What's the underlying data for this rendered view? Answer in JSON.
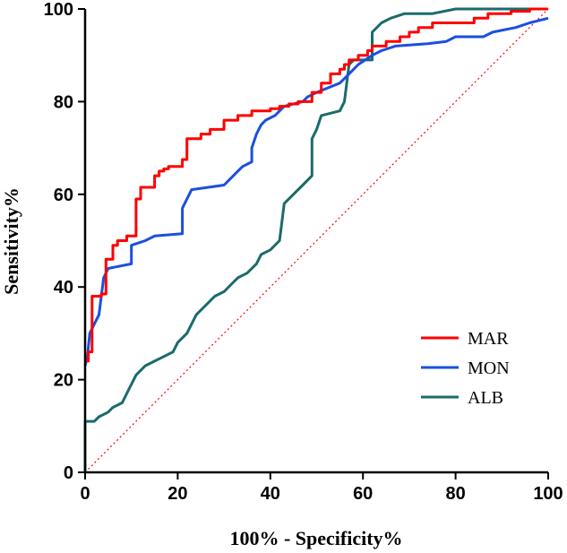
{
  "chart_data": {
    "type": "line",
    "title": "",
    "xlabel": "100% - Specificity%",
    "ylabel": "Sensitivity%",
    "xlim": [
      0,
      100
    ],
    "ylim": [
      0,
      100
    ],
    "xticks": [
      0,
      20,
      40,
      60,
      80,
      100
    ],
    "yticks": [
      0,
      20,
      40,
      60,
      80,
      100
    ],
    "tick_labels_x": [
      "0",
      "20",
      "40",
      "60",
      "80",
      "100"
    ],
    "tick_labels_y": [
      "0",
      "20",
      "40",
      "60",
      "80",
      "100"
    ],
    "grid": false,
    "legend_position": "bottom-right",
    "reference_line": {
      "from": [
        0,
        0
      ],
      "to": [
        100,
        100
      ],
      "color": "#ff0000",
      "style": "dotted"
    },
    "series": [
      {
        "name": "MAR",
        "color": "#ff0000",
        "points": [
          [
            0,
            24
          ],
          [
            0.7,
            24
          ],
          [
            0.7,
            26
          ],
          [
            1.5,
            26
          ],
          [
            1.5,
            38
          ],
          [
            3.5,
            38
          ],
          [
            3.5,
            38.5
          ],
          [
            4.5,
            38.5
          ],
          [
            4.5,
            46
          ],
          [
            6,
            46
          ],
          [
            6,
            49
          ],
          [
            7,
            49
          ],
          [
            7,
            50
          ],
          [
            9,
            50
          ],
          [
            9,
            51
          ],
          [
            11,
            51
          ],
          [
            11,
            59
          ],
          [
            12,
            59
          ],
          [
            12,
            61.5
          ],
          [
            15,
            61.5
          ],
          [
            15,
            64
          ],
          [
            16,
            64
          ],
          [
            16,
            65
          ],
          [
            17,
            65
          ],
          [
            17,
            65.5
          ],
          [
            18,
            65.5
          ],
          [
            18,
            66
          ],
          [
            21,
            66
          ],
          [
            21,
            67.5
          ],
          [
            22,
            67.5
          ],
          [
            22,
            72
          ],
          [
            25,
            72
          ],
          [
            25,
            73
          ],
          [
            27,
            73
          ],
          [
            27,
            74
          ],
          [
            30,
            74
          ],
          [
            30,
            76
          ],
          [
            33,
            76
          ],
          [
            33,
            77
          ],
          [
            36,
            77
          ],
          [
            36,
            78
          ],
          [
            40,
            78
          ],
          [
            40,
            78.5
          ],
          [
            42,
            78.5
          ],
          [
            42,
            79
          ],
          [
            44,
            79
          ],
          [
            44,
            79.5
          ],
          [
            46,
            79.5
          ],
          [
            46,
            80
          ],
          [
            49,
            80
          ],
          [
            49,
            82
          ],
          [
            51,
            82
          ],
          [
            51,
            84
          ],
          [
            53,
            84
          ],
          [
            53,
            86
          ],
          [
            55,
            86
          ],
          [
            55,
            87
          ],
          [
            56,
            87
          ],
          [
            56,
            88
          ],
          [
            57,
            88
          ],
          [
            57,
            89
          ],
          [
            59,
            89
          ],
          [
            59,
            90
          ],
          [
            61,
            90
          ],
          [
            61,
            91
          ],
          [
            62,
            91
          ],
          [
            62,
            92
          ],
          [
            65,
            92
          ],
          [
            65,
            93
          ],
          [
            68,
            93
          ],
          [
            68,
            94
          ],
          [
            70,
            94
          ],
          [
            70,
            95
          ],
          [
            72,
            95
          ],
          [
            72,
            96
          ],
          [
            75,
            96
          ],
          [
            75,
            97
          ],
          [
            84,
            97
          ],
          [
            84,
            98
          ],
          [
            87,
            98
          ],
          [
            87,
            99
          ],
          [
            92,
            99
          ],
          [
            92,
            99.5
          ],
          [
            96,
            99.5
          ],
          [
            96,
            100
          ],
          [
            100,
            100
          ]
        ]
      },
      {
        "name": "MON",
        "color": "#1a4fe0",
        "points": [
          [
            0,
            23
          ],
          [
            0.5,
            25
          ],
          [
            1,
            30
          ],
          [
            2,
            32
          ],
          [
            3,
            34
          ],
          [
            4,
            42
          ],
          [
            5,
            44
          ],
          [
            10,
            45
          ],
          [
            10,
            49
          ],
          [
            13,
            50
          ],
          [
            15,
            51
          ],
          [
            21,
            51.5
          ],
          [
            21,
            57
          ],
          [
            23,
            61
          ],
          [
            30,
            62
          ],
          [
            33,
            65
          ],
          [
            34,
            66
          ],
          [
            36,
            67
          ],
          [
            36,
            70
          ],
          [
            37,
            73
          ],
          [
            38,
            75
          ],
          [
            39,
            76
          ],
          [
            41,
            77
          ],
          [
            43,
            79
          ],
          [
            47,
            80
          ],
          [
            48,
            81
          ],
          [
            50,
            82
          ],
          [
            55,
            84
          ],
          [
            57,
            86
          ],
          [
            59,
            88
          ],
          [
            62,
            90
          ],
          [
            64,
            91
          ],
          [
            67,
            92
          ],
          [
            74,
            92.5
          ],
          [
            78,
            93
          ],
          [
            80,
            94
          ],
          [
            86,
            94
          ],
          [
            88,
            95
          ],
          [
            93,
            96
          ],
          [
            96,
            97
          ],
          [
            100,
            98
          ]
        ]
      },
      {
        "name": "ALB",
        "color": "#1b6b6b",
        "points": [
          [
            0,
            0
          ],
          [
            0,
            11
          ],
          [
            2,
            11
          ],
          [
            3,
            12
          ],
          [
            5,
            13
          ],
          [
            6,
            14
          ],
          [
            8,
            15
          ],
          [
            9,
            17
          ],
          [
            10,
            19
          ],
          [
            11,
            21
          ],
          [
            12,
            22
          ],
          [
            13,
            23
          ],
          [
            15,
            24
          ],
          [
            17,
            25
          ],
          [
            19,
            26
          ],
          [
            20,
            28
          ],
          [
            22,
            30
          ],
          [
            23,
            32
          ],
          [
            24,
            34
          ],
          [
            26,
            36
          ],
          [
            27,
            37
          ],
          [
            28,
            38
          ],
          [
            30,
            39
          ],
          [
            32,
            41
          ],
          [
            33,
            42
          ],
          [
            35,
            43
          ],
          [
            37,
            45
          ],
          [
            38,
            47
          ],
          [
            40,
            48
          ],
          [
            42,
            50
          ],
          [
            43,
            58
          ],
          [
            45,
            60
          ],
          [
            47,
            62
          ],
          [
            49,
            64
          ],
          [
            49,
            72
          ],
          [
            50,
            74
          ],
          [
            51,
            77
          ],
          [
            55,
            78
          ],
          [
            56,
            80
          ],
          [
            57,
            88
          ],
          [
            58,
            89
          ],
          [
            59,
            89
          ],
          [
            60,
            89
          ],
          [
            62,
            89
          ],
          [
            62,
            95
          ],
          [
            64,
            97
          ],
          [
            66,
            98
          ],
          [
            69,
            99
          ],
          [
            75,
            99
          ],
          [
            80,
            100
          ],
          [
            100,
            100
          ]
        ]
      }
    ]
  }
}
